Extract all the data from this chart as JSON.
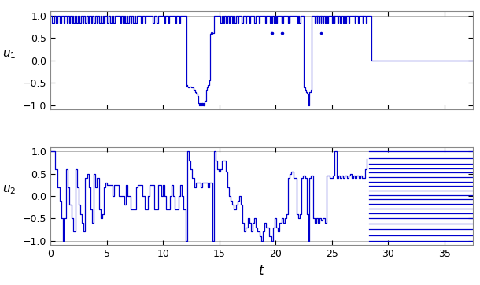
{
  "line_color": "#0000CD",
  "background_color": "#FFFFFF",
  "axes_facecolor": "#FFFFFF",
  "xlim": [
    0,
    37.5
  ],
  "ylim1": [
    -1.05,
    1.15
  ],
  "ylim2": [
    -1.05,
    1.15
  ],
  "xticks": [
    0,
    5,
    10,
    15,
    20,
    25,
    30,
    35
  ],
  "yticks1": [
    -1,
    -0.5,
    0,
    0.5,
    1
  ],
  "yticks2": [
    -1,
    -0.5,
    0,
    0.5,
    1
  ],
  "ylabel1": "$u_1$",
  "ylabel2": "$u_2$",
  "xlabel": "$t$",
  "linewidth": 0.9,
  "top_line_color": "#AAAAAA",
  "tick_fontsize": 9,
  "label_fontsize": 11
}
